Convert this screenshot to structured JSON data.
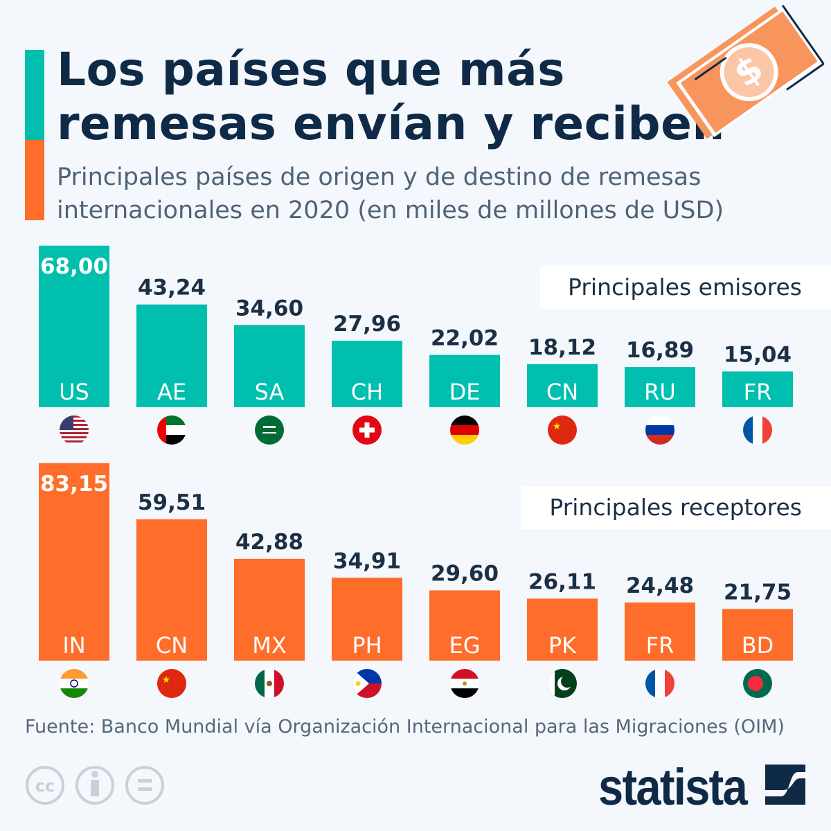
{
  "header": {
    "title_line1": "Los países que más",
    "title_line2": "remesas envían y reciben",
    "subtitle_line1": "Principales países de origen y de destino de remesas",
    "subtitle_line2": "internacionales en 2020 (en miles de millones de USD)"
  },
  "colors": {
    "senders": "#00bfae",
    "receivers": "#ff6d2a",
    "title": "#0f2a47",
    "background": "#f4f7fb"
  },
  "chart_data": [
    {
      "type": "bar",
      "title": "Principales emisores",
      "categories": [
        "US",
        "AE",
        "SA",
        "CH",
        "DE",
        "CN",
        "RU",
        "FR"
      ],
      "value_labels": [
        "68,00",
        "43,24",
        "34,60",
        "27,96",
        "22,02",
        "18,12",
        "16,89",
        "15,04"
      ],
      "values": [
        68.0,
        43.24,
        34.6,
        27.96,
        22.02,
        18.12,
        16.89,
        15.04
      ],
      "ylim": [
        0,
        90
      ],
      "grid": false,
      "legend": "top-right"
    },
    {
      "type": "bar",
      "title": "Principales receptores",
      "categories": [
        "IN",
        "CN",
        "MX",
        "PH",
        "EG",
        "PK",
        "FR",
        "BD"
      ],
      "value_labels": [
        "83,15",
        "59,51",
        "42,88",
        "34,91",
        "29,60",
        "26,11",
        "24,48",
        "21,75"
      ],
      "values": [
        83.15,
        59.51,
        42.88,
        34.91,
        29.6,
        26.11,
        24.48,
        21.75
      ],
      "ylim": [
        0,
        90
      ],
      "grid": false,
      "legend": "top-right"
    }
  ],
  "footer": {
    "source": "Fuente: Banco Mundial vía Organización Internacional para las Migraciones (OIM)",
    "logo": "statista",
    "license_icons": [
      "cc-icon",
      "attribution-icon",
      "no-derivatives-icon"
    ]
  },
  "icons": {
    "header": "dollar-bill-icon"
  }
}
